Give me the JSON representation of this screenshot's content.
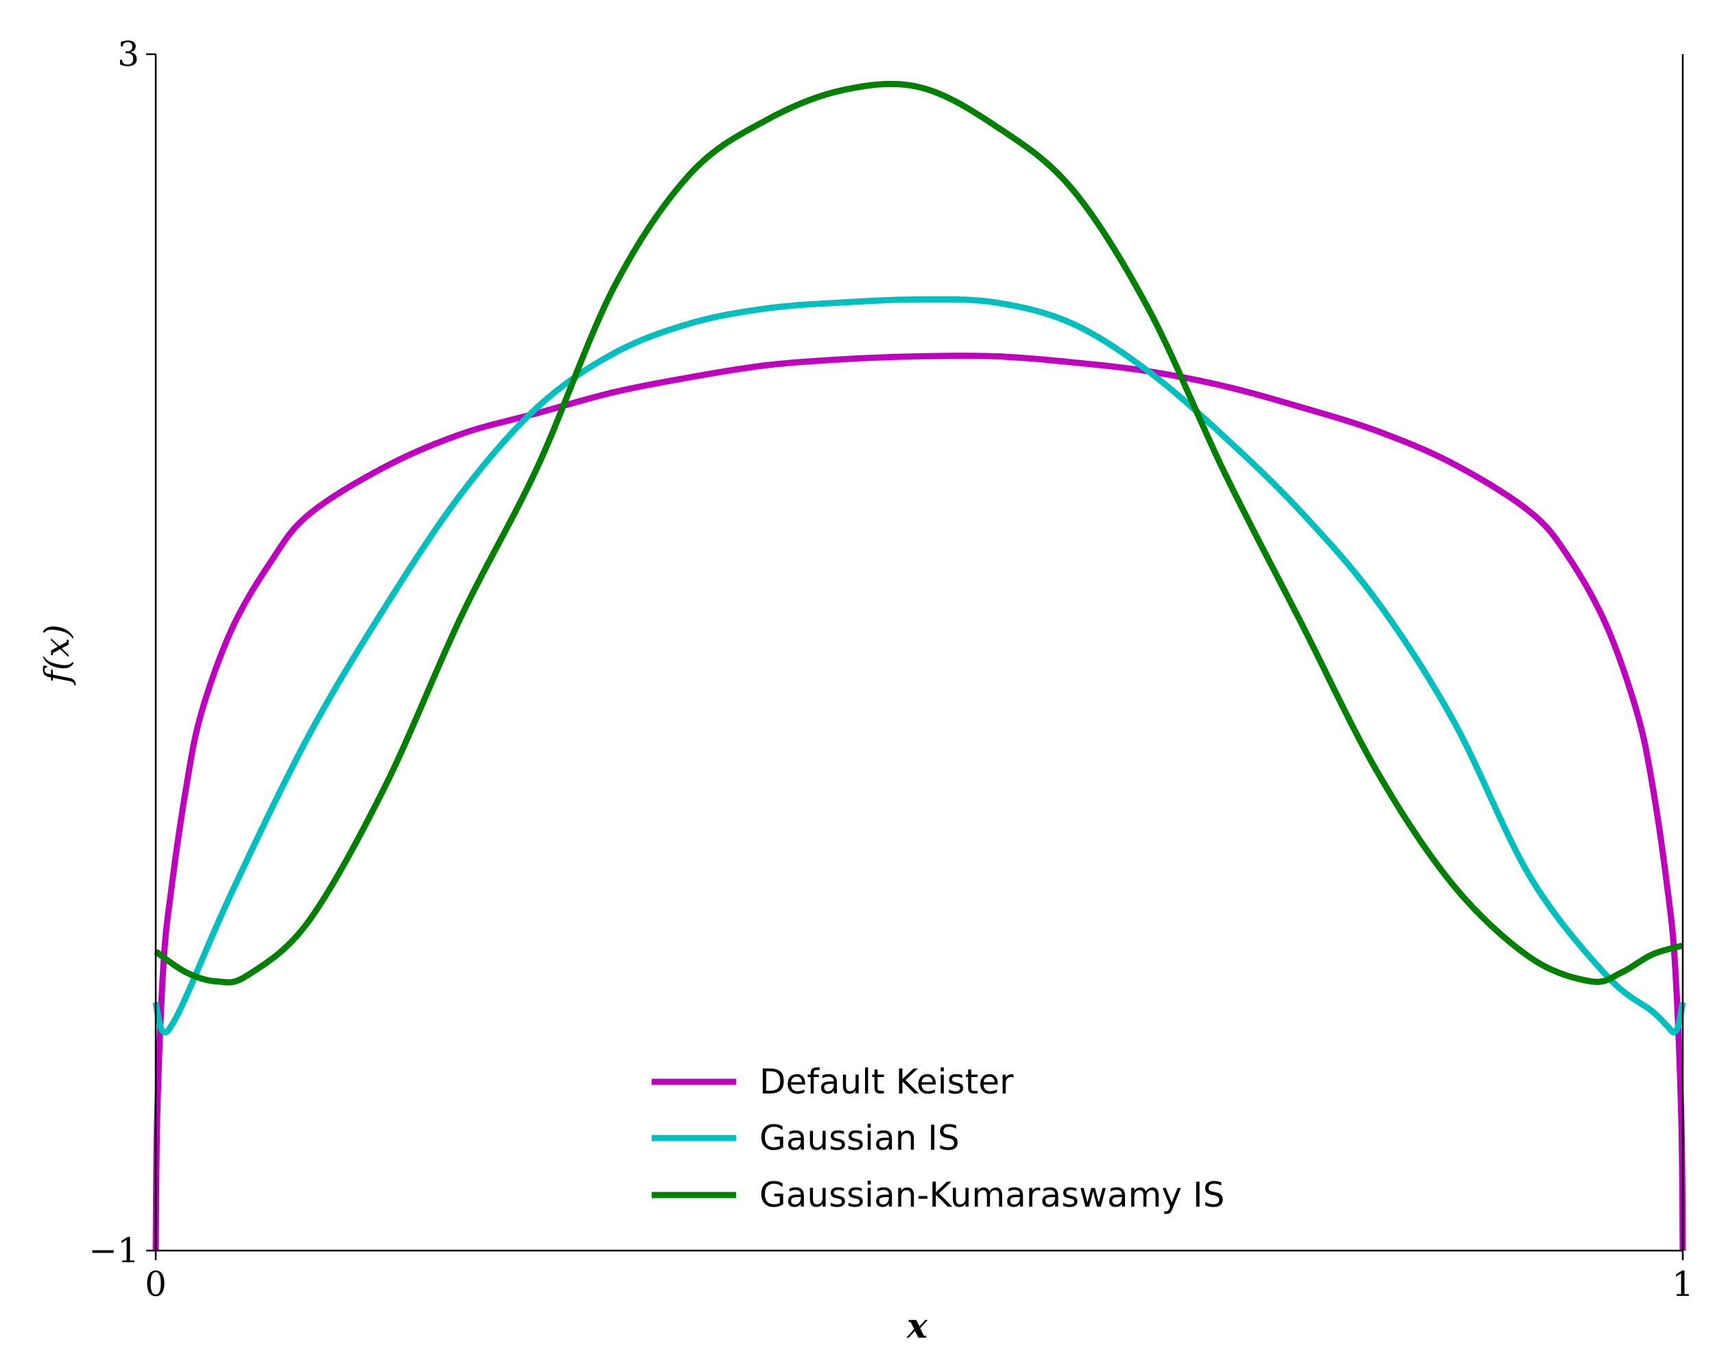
{
  "chart_data": {
    "type": "line",
    "title": "",
    "xlabel": "x",
    "ylabel": "f(x)",
    "xlim": [
      0,
      1
    ],
    "ylim": [
      -1,
      3
    ],
    "x_ticks": [
      {
        "value": 0,
        "label": "0"
      },
      {
        "value": 1,
        "label": "1"
      }
    ],
    "y_ticks": [
      {
        "value": -1,
        "label": "−1"
      },
      {
        "value": 3,
        "label": "3"
      }
    ],
    "grid": false,
    "legend_position": "lower-center",
    "series": [
      {
        "name": "Default Keister",
        "color": "#bf00bf",
        "x": [
          0.0,
          0.001,
          0.005,
          0.01,
          0.02,
          0.03,
          0.05,
          0.075,
          0.1,
          0.15,
          0.2,
          0.25,
          0.3,
          0.35,
          0.4,
          0.45,
          0.5,
          0.55,
          0.6,
          0.65,
          0.7,
          0.75,
          0.8,
          0.85,
          0.9,
          0.925,
          0.95,
          0.97,
          0.98,
          0.99,
          0.995,
          0.999,
          1.0
        ],
        "y": [
          -1.0,
          -0.55,
          -0.05,
          0.2,
          0.55,
          0.8,
          1.08,
          1.3,
          1.46,
          1.62,
          1.73,
          1.8,
          1.87,
          1.92,
          1.96,
          1.98,
          1.99,
          1.99,
          1.97,
          1.94,
          1.89,
          1.82,
          1.74,
          1.63,
          1.47,
          1.32,
          1.09,
          0.8,
          0.56,
          0.21,
          -0.05,
          -0.55,
          -1.0
        ]
      },
      {
        "name": "Gaussian IS",
        "color": "#00bfbf",
        "x": [
          0.0,
          0.003,
          0.006,
          0.01,
          0.02,
          0.05,
          0.1,
          0.15,
          0.2,
          0.25,
          0.3,
          0.35,
          0.4,
          0.45,
          0.5,
          0.55,
          0.6,
          0.65,
          0.7,
          0.75,
          0.8,
          0.85,
          0.9,
          0.95,
          0.98,
          0.99,
          0.994,
          0.997,
          1.0
        ],
        "y": [
          -0.17,
          -0.25,
          -0.27,
          -0.25,
          -0.15,
          0.2,
          0.72,
          1.15,
          1.53,
          1.82,
          2.0,
          2.1,
          2.15,
          2.17,
          2.18,
          2.17,
          2.1,
          1.94,
          1.72,
          1.47,
          1.17,
          0.77,
          0.25,
          -0.08,
          -0.2,
          -0.25,
          -0.27,
          -0.25,
          -0.17
        ]
      },
      {
        "name": "Gaussian-Kumaraswamy IS",
        "color": "#008000",
        "x": [
          0.0,
          0.02,
          0.04,
          0.06,
          0.1,
          0.15,
          0.2,
          0.25,
          0.3,
          0.35,
          0.4,
          0.45,
          0.5,
          0.55,
          0.6,
          0.65,
          0.7,
          0.75,
          0.8,
          0.85,
          0.9,
          0.94,
          0.96,
          0.98,
          1.0
        ],
        "y": [
          0.0,
          -0.07,
          -0.1,
          -0.08,
          0.1,
          0.55,
          1.12,
          1.62,
          2.22,
          2.6,
          2.78,
          2.88,
          2.89,
          2.76,
          2.55,
          2.15,
          1.6,
          1.1,
          0.6,
          0.22,
          -0.02,
          -0.1,
          -0.07,
          -0.01,
          0.02
        ]
      }
    ]
  }
}
